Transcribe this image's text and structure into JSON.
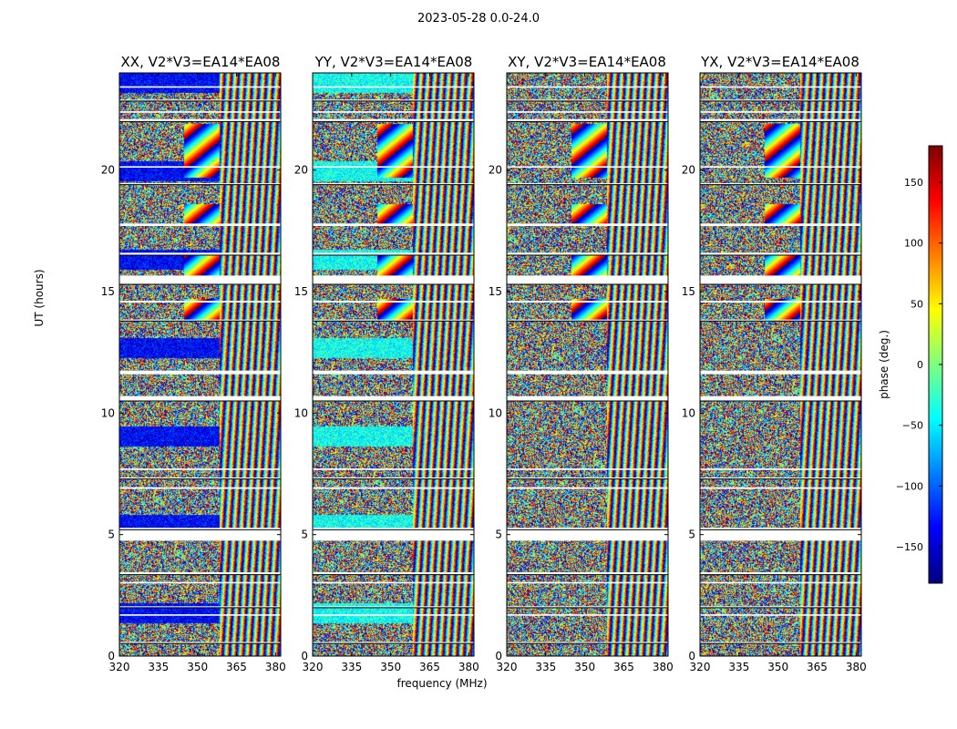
{
  "chart_data": {
    "type": "heatmap",
    "suptitle": "2023-05-28 0.0-24.0",
    "xlabel": "frequency (MHz)",
    "ylabel": "UT (hours)",
    "xlim": [
      320,
      382
    ],
    "ylim": [
      0,
      24
    ],
    "xticks": [
      320,
      335,
      350,
      365,
      380
    ],
    "yticks": [
      0,
      5,
      10,
      15,
      20
    ],
    "panels": [
      {
        "title": "XX, V2*V3=EA14*EA08",
        "low_freq_bias": -135
      },
      {
        "title": "YY, V2*V3=EA14*EA08",
        "low_freq_bias": -40
      },
      {
        "title": "XY, V2*V3=EA14*EA08",
        "low_freq_bias": null
      },
      {
        "title": "YX, V2*V3=EA14*EA08",
        "low_freq_bias": null
      }
    ],
    "colorbar": {
      "label": "phase (deg.)",
      "range": [
        -180,
        180
      ],
      "ticks": [
        150,
        100,
        50,
        0,
        -50,
        -100,
        -150
      ],
      "tick_labels": [
        "150",
        "100",
        "50",
        "0",
        "−50",
        "−100",
        "−150"
      ],
      "colormap": "jet"
    },
    "flagged_time_bands_hours": [
      [
        0.52,
        0.58
      ],
      [
        1.66,
        1.72
      ],
      [
        2.0,
        2.05
      ],
      [
        3.0,
        3.05
      ],
      [
        3.35,
        3.45
      ],
      [
        4.75,
        5.2
      ],
      [
        5.2,
        5.28
      ],
      [
        6.88,
        6.95
      ],
      [
        7.3,
        7.35
      ],
      [
        7.66,
        7.72
      ],
      [
        10.5,
        10.7
      ],
      [
        11.6,
        11.75
      ],
      [
        13.8,
        13.85
      ],
      [
        14.55,
        14.62
      ],
      [
        15.3,
        15.6
      ],
      [
        15.62,
        15.66
      ],
      [
        16.5,
        16.6
      ],
      [
        17.7,
        17.8
      ],
      [
        19.4,
        19.46
      ],
      [
        20.1,
        20.16
      ],
      [
        22.0,
        22.1
      ],
      [
        22.38,
        22.42
      ],
      [
        22.85,
        22.9
      ],
      [
        23.4,
        23.45
      ]
    ],
    "fringe_bands_hours": [
      [
        13.8,
        14.7
      ],
      [
        15.6,
        16.5
      ],
      [
        17.8,
        18.6
      ],
      [
        19.7,
        20.8
      ],
      [
        20.8,
        21.9
      ]
    ]
  }
}
